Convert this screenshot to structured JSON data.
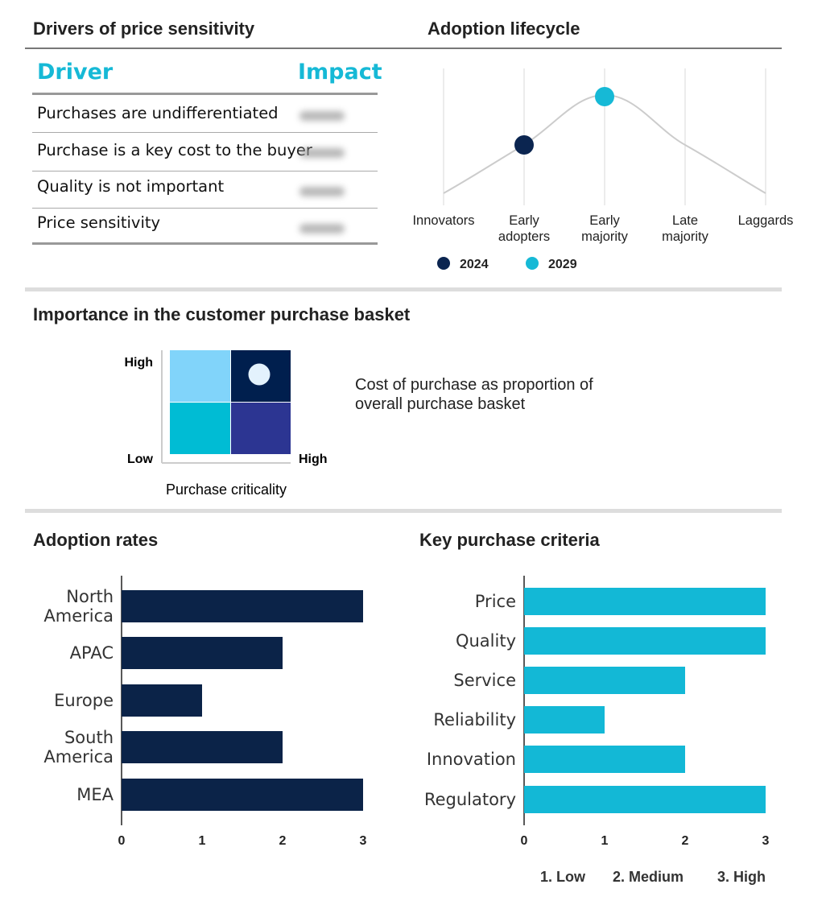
{
  "drivers": {
    "title": "Drivers of price sensitivity",
    "header_driver": "Driver",
    "header_impact": "Impact",
    "rows": [
      {
        "driver": "Purchases are undifferentiated"
      },
      {
        "driver": "Purchase is a key cost to the buyer"
      },
      {
        "driver": "Quality is not important"
      },
      {
        "driver": "Price sensitivity"
      }
    ]
  },
  "lifecycle": {
    "title": "Adoption lifecycle",
    "stages": [
      "Innovators",
      "Early adopters",
      "Early majority",
      "Late majority",
      "Laggards"
    ],
    "markers": [
      {
        "label": "2024",
        "stage": "Early adopters",
        "color": "#0b2550"
      },
      {
        "label": "2029",
        "stage": "Early majority",
        "color": "#16b9d6"
      }
    ]
  },
  "basket": {
    "title": "Importance in the customer purchase basket",
    "y_high": "High",
    "y_low": "Low",
    "x_high": "High",
    "x_label": "Purchase criticality",
    "description": "Cost of purchase as proportion of overall purchase basket",
    "cell_colors": {
      "top_left": "#81d4fa",
      "top_right": "#001f4e",
      "bottom_left": "#00bcd4",
      "bottom_right": "#2c3592"
    },
    "marker_quadrant": "High criticality / High cost"
  },
  "chart_data": [
    {
      "type": "bar",
      "orientation": "horizontal",
      "title": "Adoption rates",
      "categories": [
        "North America",
        "APAC",
        "Europe",
        "South America",
        "MEA"
      ],
      "values": [
        3,
        2,
        1,
        2,
        3
      ],
      "xlim": [
        0,
        3
      ],
      "xticks": [
        "0",
        "1",
        "2",
        "3"
      ],
      "color": "#0b2348",
      "grid": false
    },
    {
      "type": "bar",
      "orientation": "horizontal",
      "title": "Key purchase criteria",
      "categories": [
        "Price",
        "Quality",
        "Service",
        "Reliability",
        "Innovation",
        "Regulatory"
      ],
      "values": [
        3,
        3,
        2,
        1,
        2,
        3
      ],
      "xlim": [
        0,
        3
      ],
      "xticks": [
        "0",
        "1",
        "2",
        "3"
      ],
      "color": "#13b8d6",
      "grid": false,
      "legend": [
        "1. Low",
        "2. Medium",
        "3. High"
      ]
    }
  ]
}
